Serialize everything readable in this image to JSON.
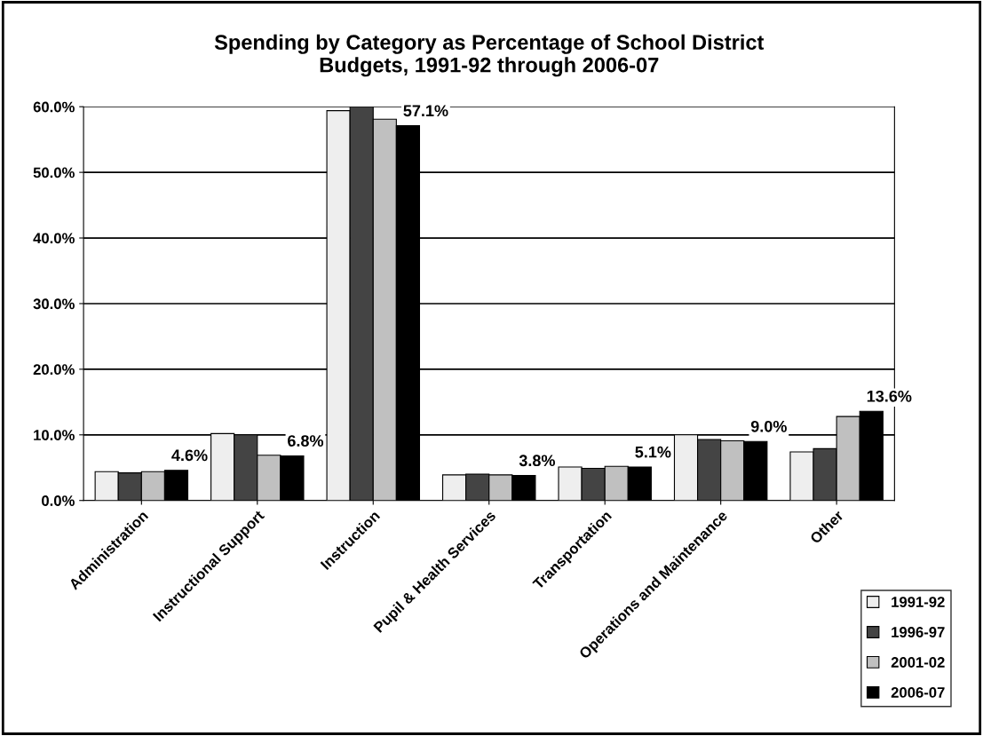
{
  "chart_data": {
    "type": "bar",
    "title": "Spending by Category as Percentage of School District\nBudgets, 1991-92 through 2006-07",
    "categories": [
      "Administration",
      "Instructional Support",
      "Instruction",
      "Pupil & Health Services",
      "Transportation",
      "Operations and Maintenance",
      "Other"
    ],
    "series": [
      {
        "name": "1991-92",
        "color": "#eeeeee",
        "values": [
          4.4,
          10.2,
          59.4,
          3.9,
          5.1,
          10.0,
          7.4
        ]
      },
      {
        "name": "1996-97",
        "color": "#444444",
        "values": [
          4.2,
          10.0,
          60.0,
          4.0,
          4.9,
          9.3,
          7.9
        ]
      },
      {
        "name": "2001-02",
        "color": "#c0c0c0",
        "values": [
          4.4,
          6.9,
          58.1,
          3.9,
          5.2,
          9.1,
          12.8
        ]
      },
      {
        "name": "2006-07",
        "color": "#000000",
        "values": [
          4.6,
          6.8,
          57.1,
          3.8,
          5.1,
          9.0,
          13.6
        ],
        "value_labels": [
          "4.6%",
          "6.8%",
          "57.1%",
          "3.8%",
          "5.1%",
          "9.0%",
          "13.6%"
        ]
      }
    ],
    "ylim": [
      0,
      60
    ],
    "yticks": [
      {
        "value": 0,
        "label": "0.0%"
      },
      {
        "value": 10,
        "label": "10.0%"
      },
      {
        "value": 20,
        "label": "20.0%"
      },
      {
        "value": 30,
        "label": "30.0%"
      },
      {
        "value": 40,
        "label": "40.0%"
      },
      {
        "value": 50,
        "label": "50.0%"
      },
      {
        "value": 60,
        "label": "60.0%"
      }
    ],
    "grid": "y",
    "legend": "bottom right"
  }
}
